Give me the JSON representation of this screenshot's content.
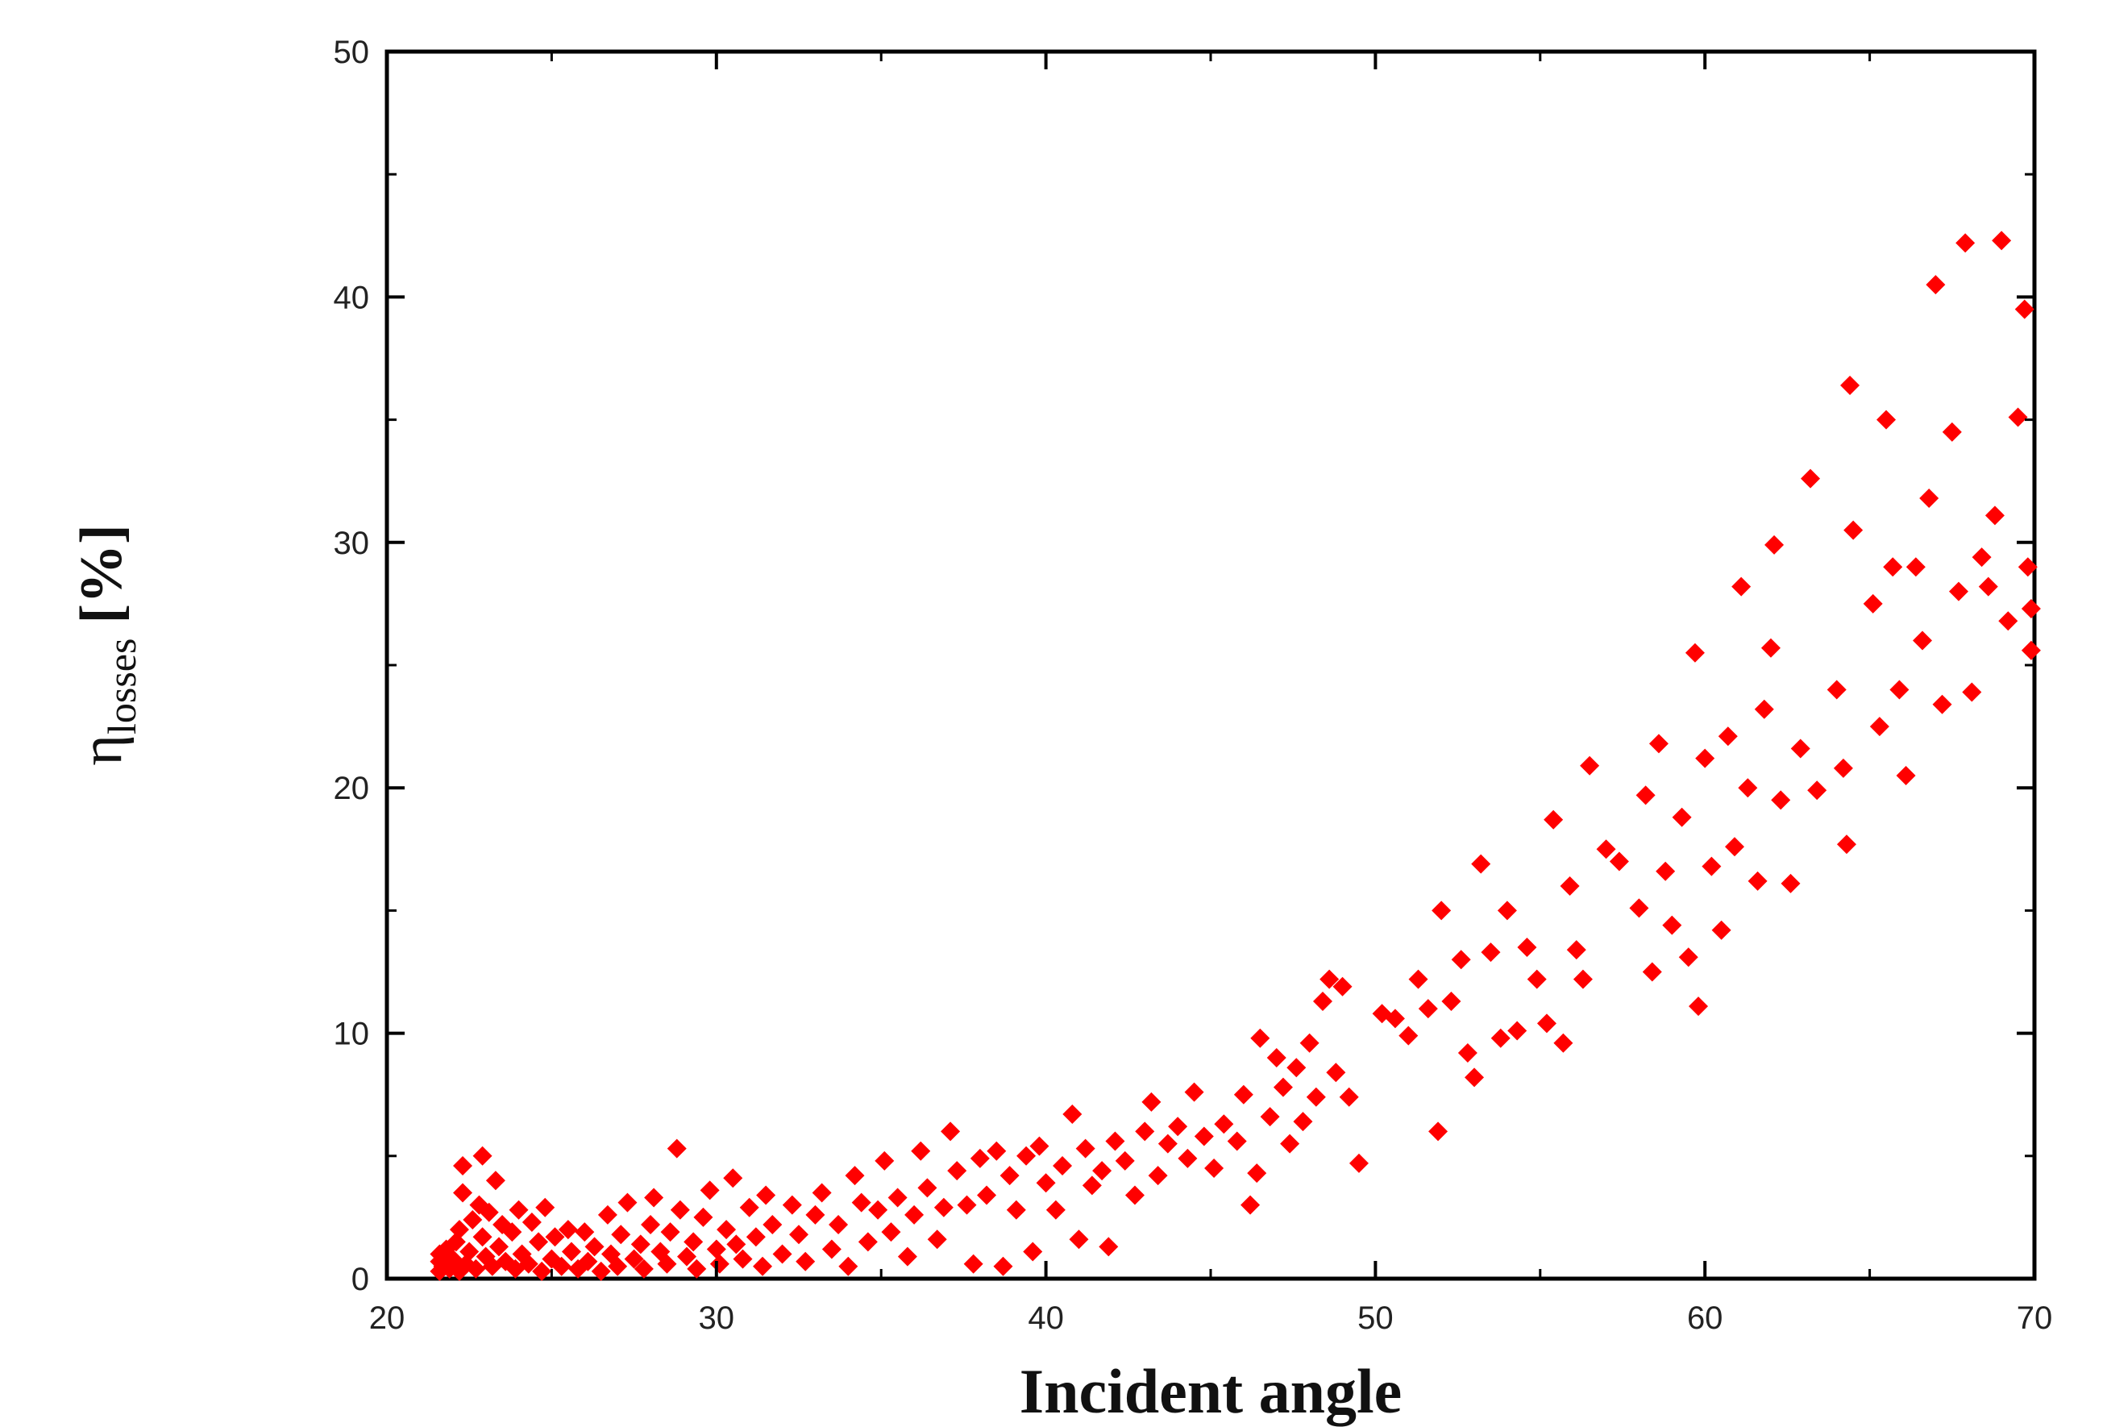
{
  "chart_data": {
    "type": "scatter",
    "xlabel": "Incident angle",
    "ylabel_main": "η",
    "ylabel_sub": "losses",
    "ylabel_unit": "[%]",
    "xlim": [
      20,
      70
    ],
    "ylim": [
      0,
      50
    ],
    "xticks": [
      20,
      30,
      40,
      50,
      60,
      70
    ],
    "yticks": [
      0,
      10,
      20,
      30,
      40,
      50
    ],
    "grid": false,
    "marker": "diamond",
    "series_color": "#ff0000",
    "points": [
      [
        21.6,
        0.3
      ],
      [
        21.6,
        0.7
      ],
      [
        21.6,
        1.0
      ],
      [
        21.7,
        0.5
      ],
      [
        21.8,
        1.2
      ],
      [
        21.9,
        0.4
      ],
      [
        22.0,
        0.8
      ],
      [
        22.1,
        1.5
      ],
      [
        22.2,
        0.3
      ],
      [
        22.2,
        2.0
      ],
      [
        22.3,
        3.5
      ],
      [
        22.3,
        4.6
      ],
      [
        22.4,
        0.6
      ],
      [
        22.5,
        1.1
      ],
      [
        22.6,
        2.4
      ],
      [
        22.7,
        0.4
      ],
      [
        22.8,
        3.0
      ],
      [
        22.9,
        5.0
      ],
      [
        22.9,
        1.7
      ],
      [
        23.0,
        0.9
      ],
      [
        23.1,
        2.7
      ],
      [
        23.2,
        0.5
      ],
      [
        23.3,
        4.0
      ],
      [
        23.4,
        1.3
      ],
      [
        23.5,
        2.2
      ],
      [
        23.6,
        0.7
      ],
      [
        23.8,
        1.9
      ],
      [
        23.9,
        0.4
      ],
      [
        24.0,
        2.8
      ],
      [
        24.1,
        1.0
      ],
      [
        24.3,
        0.6
      ],
      [
        24.4,
        2.3
      ],
      [
        24.6,
        1.5
      ],
      [
        24.7,
        0.3
      ],
      [
        24.8,
        2.9
      ],
      [
        25.0,
        0.8
      ],
      [
        25.1,
        1.7
      ],
      [
        25.3,
        0.5
      ],
      [
        25.5,
        2.0
      ],
      [
        25.6,
        1.1
      ],
      [
        25.8,
        0.4
      ],
      [
        26.0,
        1.9
      ],
      [
        26.1,
        0.7
      ],
      [
        26.3,
        1.3
      ],
      [
        26.5,
        0.3
      ],
      [
        26.7,
        2.6
      ],
      [
        26.8,
        1.0
      ],
      [
        27.0,
        0.5
      ],
      [
        27.1,
        1.8
      ],
      [
        27.3,
        3.1
      ],
      [
        27.5,
        0.8
      ],
      [
        27.7,
        1.4
      ],
      [
        27.8,
        0.4
      ],
      [
        28.0,
        2.2
      ],
      [
        28.1,
        3.3
      ],
      [
        28.3,
        1.1
      ],
      [
        28.5,
        0.6
      ],
      [
        28.6,
        1.9
      ],
      [
        28.8,
        5.3
      ],
      [
        28.9,
        2.8
      ],
      [
        29.1,
        0.9
      ],
      [
        29.3,
        1.5
      ],
      [
        29.4,
        0.4
      ],
      [
        29.6,
        2.5
      ],
      [
        29.8,
        3.6
      ],
      [
        30.0,
        1.2
      ],
      [
        30.1,
        0.6
      ],
      [
        30.3,
        2.0
      ],
      [
        30.5,
        4.1
      ],
      [
        30.6,
        1.4
      ],
      [
        30.8,
        0.8
      ],
      [
        31.0,
        2.9
      ],
      [
        31.2,
        1.7
      ],
      [
        31.4,
        0.5
      ],
      [
        31.5,
        3.4
      ],
      [
        31.7,
        2.2
      ],
      [
        32.0,
        1.0
      ],
      [
        32.3,
        3.0
      ],
      [
        32.5,
        1.8
      ],
      [
        32.7,
        0.7
      ],
      [
        33.0,
        2.6
      ],
      [
        33.2,
        3.5
      ],
      [
        33.5,
        1.2
      ],
      [
        33.7,
        2.2
      ],
      [
        34.0,
        0.5
      ],
      [
        34.2,
        4.2
      ],
      [
        34.4,
        3.1
      ],
      [
        34.6,
        1.5
      ],
      [
        34.9,
        2.8
      ],
      [
        35.1,
        4.8
      ],
      [
        35.3,
        1.9
      ],
      [
        35.5,
        3.3
      ],
      [
        35.8,
        0.9
      ],
      [
        36.0,
        2.6
      ],
      [
        36.2,
        5.2
      ],
      [
        36.4,
        3.7
      ],
      [
        36.7,
        1.6
      ],
      [
        36.9,
        2.9
      ],
      [
        37.1,
        6.0
      ],
      [
        37.3,
        4.4
      ],
      [
        37.6,
        3.0
      ],
      [
        37.8,
        0.6
      ],
      [
        38.0,
        4.9
      ],
      [
        38.2,
        3.4
      ],
      [
        38.5,
        5.2
      ],
      [
        38.7,
        0.5
      ],
      [
        38.9,
        4.2
      ],
      [
        39.1,
        2.8
      ],
      [
        39.4,
        5.0
      ],
      [
        39.6,
        1.1
      ],
      [
        39.8,
        5.4
      ],
      [
        40.0,
        3.9
      ],
      [
        40.3,
        2.8
      ],
      [
        40.5,
        4.6
      ],
      [
        40.8,
        6.7
      ],
      [
        41.0,
        1.6
      ],
      [
        41.2,
        5.3
      ],
      [
        41.4,
        3.8
      ],
      [
        41.7,
        4.4
      ],
      [
        41.9,
        1.3
      ],
      [
        42.1,
        5.6
      ],
      [
        42.4,
        4.8
      ],
      [
        42.7,
        3.4
      ],
      [
        43.0,
        6.0
      ],
      [
        43.2,
        7.2
      ],
      [
        43.4,
        4.2
      ],
      [
        43.7,
        5.5
      ],
      [
        44.0,
        6.2
      ],
      [
        44.3,
        4.9
      ],
      [
        44.5,
        7.6
      ],
      [
        44.8,
        5.8
      ],
      [
        45.1,
        4.5
      ],
      [
        45.4,
        6.3
      ],
      [
        45.8,
        5.6
      ],
      [
        46.0,
        7.5
      ],
      [
        46.2,
        3.0
      ],
      [
        46.4,
        4.3
      ],
      [
        46.5,
        9.8
      ],
      [
        46.8,
        6.6
      ],
      [
        47.0,
        9.0
      ],
      [
        47.2,
        7.8
      ],
      [
        47.4,
        5.5
      ],
      [
        47.6,
        8.6
      ],
      [
        47.8,
        6.4
      ],
      [
        48.0,
        9.6
      ],
      [
        48.2,
        7.4
      ],
      [
        48.4,
        11.3
      ],
      [
        48.6,
        12.2
      ],
      [
        48.8,
        8.4
      ],
      [
        49.0,
        11.9
      ],
      [
        49.2,
        7.4
      ],
      [
        49.5,
        4.7
      ],
      [
        50.2,
        10.8
      ],
      [
        50.6,
        10.6
      ],
      [
        51.0,
        9.9
      ],
      [
        51.3,
        12.2
      ],
      [
        51.6,
        11.0
      ],
      [
        51.9,
        6.0
      ],
      [
        52.0,
        15.0
      ],
      [
        52.3,
        11.3
      ],
      [
        52.6,
        13.0
      ],
      [
        52.8,
        9.2
      ],
      [
        53.0,
        8.2
      ],
      [
        53.2,
        16.9
      ],
      [
        53.5,
        13.3
      ],
      [
        53.8,
        9.8
      ],
      [
        54.0,
        15.0
      ],
      [
        54.3,
        10.1
      ],
      [
        54.6,
        13.5
      ],
      [
        54.9,
        12.2
      ],
      [
        55.2,
        10.4
      ],
      [
        55.4,
        18.7
      ],
      [
        55.7,
        9.6
      ],
      [
        55.9,
        16.0
      ],
      [
        56.1,
        13.4
      ],
      [
        56.3,
        12.2
      ],
      [
        56.5,
        20.9
      ],
      [
        57.0,
        17.5
      ],
      [
        57.4,
        17.0
      ],
      [
        58.0,
        15.1
      ],
      [
        58.2,
        19.7
      ],
      [
        58.4,
        12.5
      ],
      [
        58.6,
        21.8
      ],
      [
        58.8,
        16.6
      ],
      [
        59.0,
        14.4
      ],
      [
        59.3,
        18.8
      ],
      [
        59.5,
        13.1
      ],
      [
        59.7,
        25.5
      ],
      [
        59.8,
        11.1
      ],
      [
        60.0,
        21.2
      ],
      [
        60.2,
        16.8
      ],
      [
        60.5,
        14.2
      ],
      [
        60.7,
        22.1
      ],
      [
        60.9,
        17.6
      ],
      [
        61.1,
        28.2
      ],
      [
        61.3,
        20.0
      ],
      [
        61.6,
        16.2
      ],
      [
        61.8,
        23.2
      ],
      [
        62.0,
        25.7
      ],
      [
        62.1,
        29.9
      ],
      [
        62.3,
        19.5
      ],
      [
        62.6,
        16.1
      ],
      [
        62.9,
        21.6
      ],
      [
        63.2,
        32.6
      ],
      [
        63.4,
        19.9
      ],
      [
        64.0,
        24.0
      ],
      [
        64.2,
        20.8
      ],
      [
        64.4,
        36.4
      ],
      [
        64.5,
        30.5
      ],
      [
        64.3,
        17.7
      ],
      [
        65.1,
        27.5
      ],
      [
        65.3,
        22.5
      ],
      [
        65.5,
        35.0
      ],
      [
        65.7,
        29.0
      ],
      [
        65.9,
        24.0
      ],
      [
        66.1,
        20.5
      ],
      [
        66.4,
        29.0
      ],
      [
        66.6,
        26.0
      ],
      [
        66.8,
        31.8
      ],
      [
        67.0,
        40.5
      ],
      [
        67.2,
        23.4
      ],
      [
        67.5,
        34.5
      ],
      [
        67.7,
        28.0
      ],
      [
        67.9,
        42.2
      ],
      [
        68.1,
        23.9
      ],
      [
        68.4,
        29.4
      ],
      [
        68.6,
        28.2
      ],
      [
        68.8,
        31.1
      ],
      [
        69.0,
        42.3
      ],
      [
        69.2,
        26.8
      ],
      [
        69.5,
        35.1
      ],
      [
        69.7,
        39.5
      ],
      [
        69.8,
        29.0
      ],
      [
        69.9,
        25.6
      ],
      [
        69.9,
        27.3
      ]
    ]
  }
}
